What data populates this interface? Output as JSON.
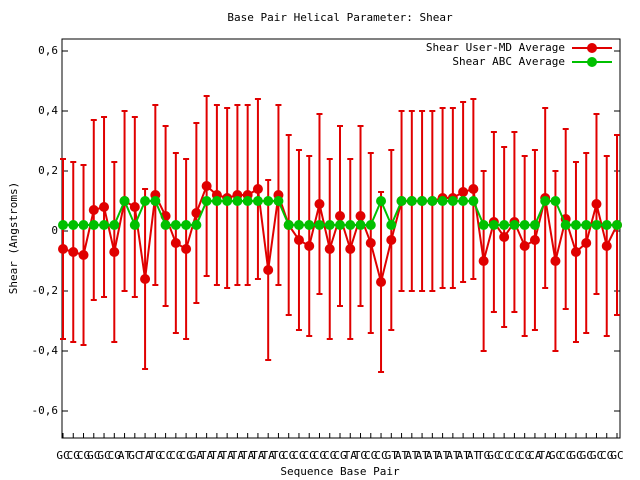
{
  "chart_data": {
    "type": "line",
    "title": "Base Pair Helical Parameter: Shear",
    "xlabel": "Sequence Base Pair",
    "ylabel": "Shear (Angstroms)",
    "categories": [
      "GC",
      "CG",
      "CG",
      "GC",
      "GC",
      "CG",
      "AT",
      "GC",
      "TA",
      "TG",
      "CC",
      "CG",
      "CC",
      "GA",
      "TA",
      "TA",
      "TA",
      "TA",
      "TA",
      "TA",
      "TA",
      "TG",
      "CG",
      "CG",
      "CG",
      "CG",
      "CG",
      "CG",
      "TA",
      "TG",
      "CG",
      "CC",
      "GT",
      "AT",
      "AT",
      "AT",
      "AT",
      "AT",
      "AT",
      "AT",
      "AT",
      "TG",
      "GC",
      "CC",
      "CC",
      "CG",
      "CA",
      "TA",
      "GC",
      "CC",
      "GC",
      "GC",
      "GC",
      "CG",
      "GC"
    ],
    "ylim": [
      -0.69,
      0.64
    ],
    "yticks": [
      {
        "value": -0.6,
        "label": "-0,6"
      },
      {
        "value": -0.4,
        "label": "-0,4"
      },
      {
        "value": -0.2,
        "label": "-0,2"
      },
      0,
      {
        "value": 0.2,
        "label": "0,2"
      },
      {
        "value": 0.4,
        "label": "0,4"
      },
      {
        "value": 0.6,
        "label": "0,6"
      }
    ],
    "legend": "top-right",
    "series": [
      {
        "name": "Shear User-MD Average",
        "color": "#e00000",
        "values": [
          -0.06,
          -0.07,
          -0.08,
          0.07,
          0.08,
          -0.07,
          0.1,
          0.08,
          -0.16,
          0.12,
          0.05,
          -0.04,
          -0.06,
          0.06,
          0.15,
          0.12,
          0.11,
          0.12,
          0.12,
          0.14,
          -0.13,
          0.12,
          0.02,
          -0.03,
          -0.05,
          0.09,
          -0.06,
          0.05,
          -0.06,
          0.05,
          -0.04,
          -0.17,
          -0.03,
          0.1,
          0.1,
          0.1,
          0.1,
          0.11,
          0.11,
          0.13,
          0.14,
          -0.1,
          0.03,
          -0.02,
          0.03,
          -0.05,
          -0.03,
          0.11,
          -0.1,
          0.04,
          -0.07,
          -0.04,
          0.09,
          -0.05,
          0.02
        ],
        "errors": [
          0.3,
          0.3,
          0.3,
          0.3,
          0.3,
          0.3,
          0.3,
          0.3,
          0.3,
          0.3,
          0.3,
          0.3,
          0.3,
          0.3,
          0.3,
          0.3,
          0.3,
          0.3,
          0.3,
          0.3,
          0.3,
          0.3,
          0.3,
          0.3,
          0.3,
          0.3,
          0.3,
          0.3,
          0.3,
          0.3,
          0.3,
          0.3,
          0.3,
          0.3,
          0.3,
          0.3,
          0.3,
          0.3,
          0.3,
          0.3,
          0.3,
          0.3,
          0.3,
          0.3,
          0.3,
          0.3,
          0.3,
          0.3,
          0.3,
          0.3,
          0.3,
          0.3,
          0.3,
          0.3,
          0.3
        ]
      },
      {
        "name": "Shear ABC Average",
        "color": "#00c000",
        "values": [
          0.02,
          0.02,
          0.02,
          0.02,
          0.02,
          0.02,
          0.1,
          0.02,
          0.1,
          0.1,
          0.02,
          0.02,
          0.02,
          0.02,
          0.1,
          0.1,
          0.1,
          0.1,
          0.1,
          0.1,
          0.1,
          0.1,
          0.02,
          0.02,
          0.02,
          0.02,
          0.02,
          0.02,
          0.02,
          0.02,
          0.02,
          0.1,
          0.02,
          0.1,
          0.1,
          0.1,
          0.1,
          0.1,
          0.1,
          0.1,
          0.1,
          0.02,
          0.02,
          0.02,
          0.02,
          0.02,
          0.02,
          0.1,
          0.1,
          0.02,
          0.02,
          0.02,
          0.02,
          0.02,
          0.02
        ]
      }
    ]
  }
}
